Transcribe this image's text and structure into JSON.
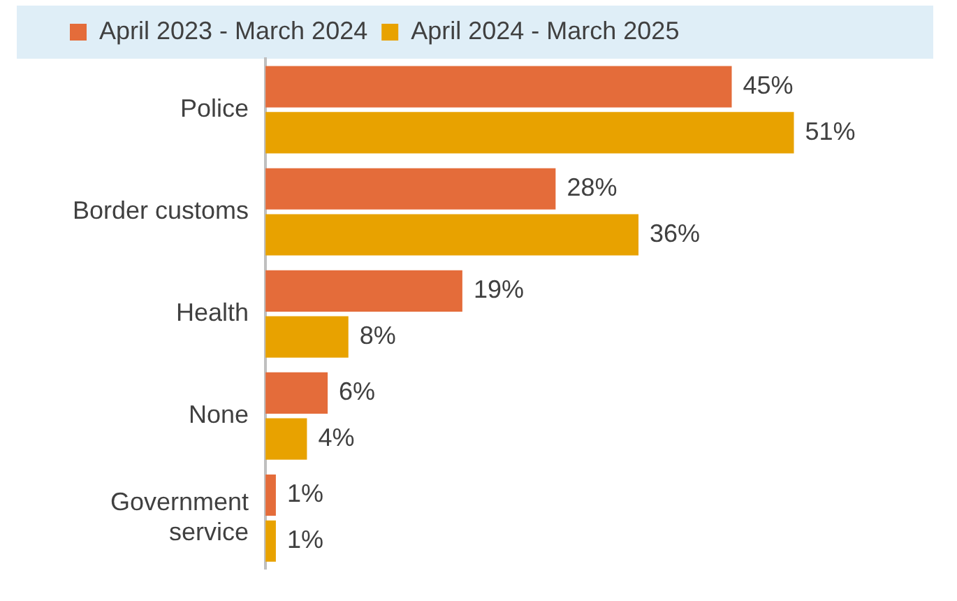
{
  "chart_data": {
    "type": "bar",
    "orientation": "horizontal",
    "categories": [
      "Police",
      "Border customs",
      "Health",
      "None",
      "Government service"
    ],
    "series": [
      {
        "name": "April 2023 - March 2024",
        "color": "#e46c3a",
        "values": [
          45,
          28,
          19,
          6,
          1
        ],
        "value_labels": [
          "45%",
          "28%",
          "19%",
          "6%",
          "1%"
        ]
      },
      {
        "name": "April 2024 - March 2025",
        "color": "#e8a200",
        "values": [
          51,
          36,
          8,
          4,
          1
        ],
        "value_labels": [
          "51%",
          "36%",
          "8%",
          "4%",
          "1%"
        ]
      }
    ],
    "tick_labels": "y",
    "grid": false,
    "legend": "top left"
  }
}
